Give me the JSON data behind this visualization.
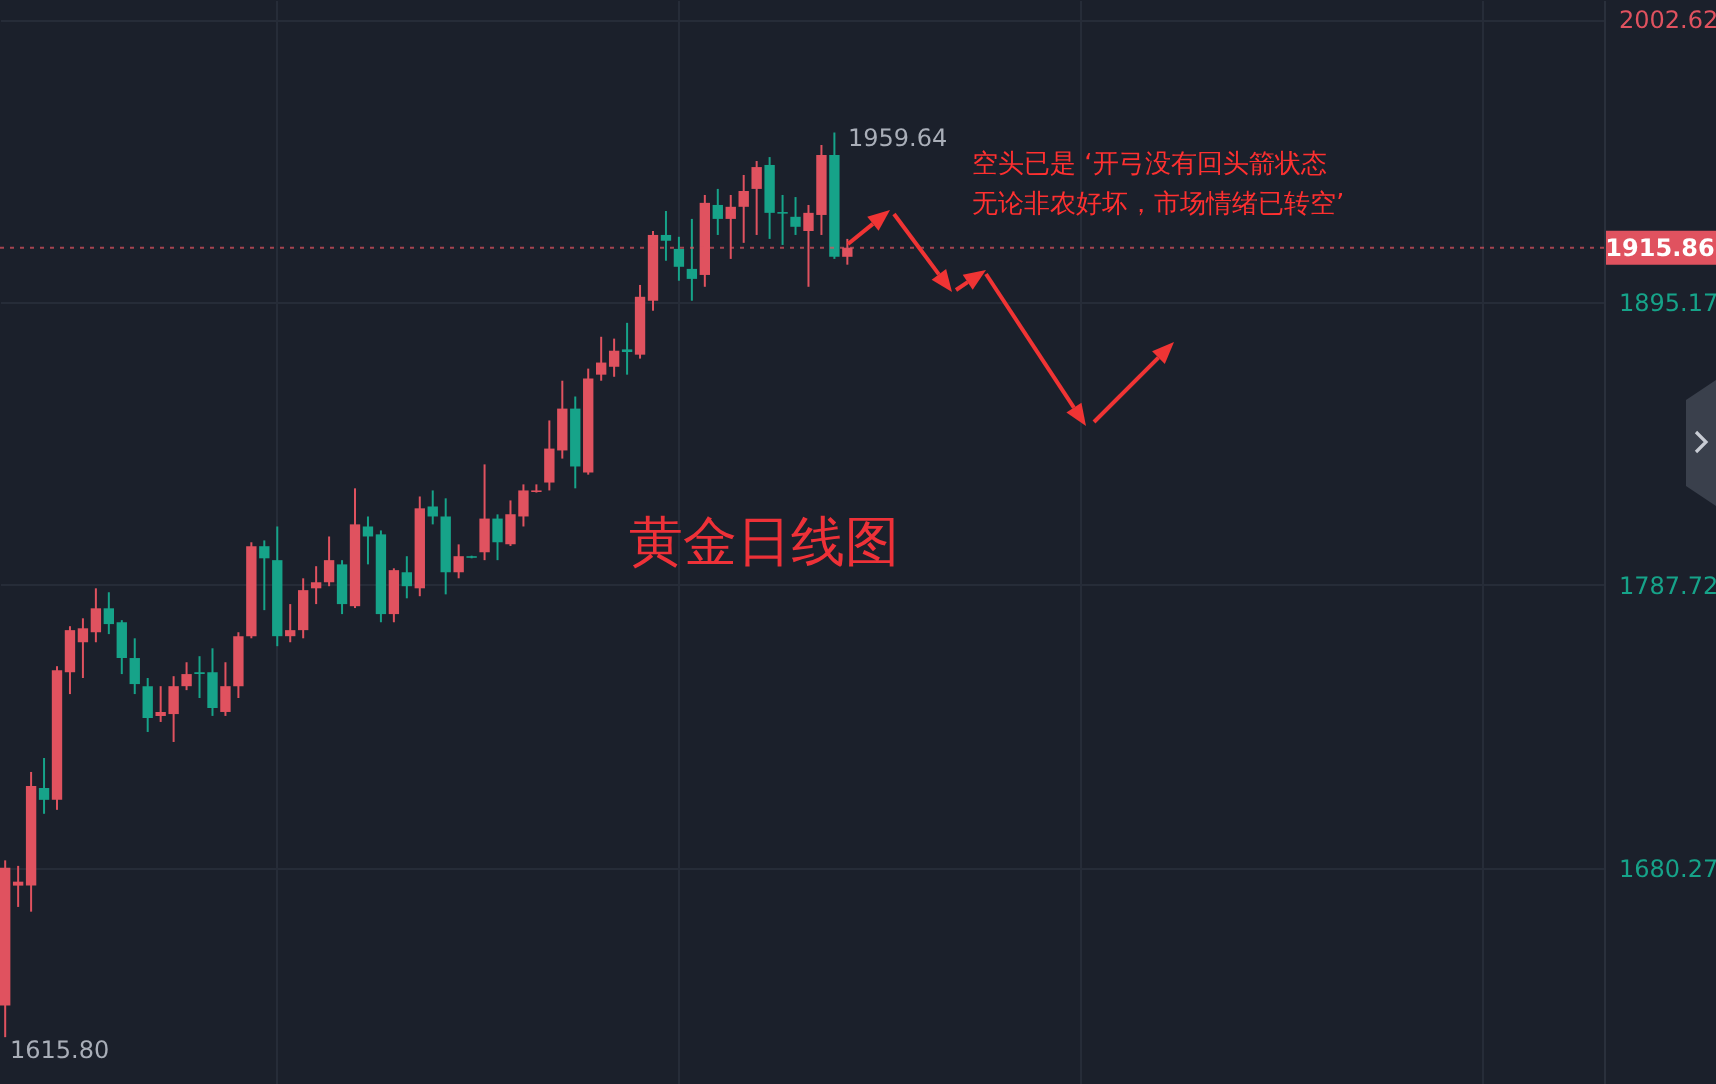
{
  "chart_data": {
    "type": "candlestick",
    "title": "黄金日线图",
    "categories": [
      null,
      null,
      null,
      null,
      null,
      null,
      null,
      null,
      null,
      null,
      null,
      null,
      null,
      null,
      null,
      null,
      null,
      null,
      null,
      null,
      null,
      null,
      null,
      null,
      null,
      null,
      null,
      null,
      null,
      null,
      null,
      null,
      null,
      null,
      null,
      null,
      null,
      null,
      null,
      null,
      null,
      null,
      null,
      null,
      null,
      null,
      null,
      null,
      null,
      null,
      null,
      null,
      null,
      null,
      null,
      null,
      null,
      null,
      null,
      null,
      null,
      null,
      null,
      null,
      null,
      null,
      null,
      null,
      null,
      null,
      null,
      null,
      null,
      null,
      null,
      null,
      null,
      null,
      null,
      null,
      null,
      null,
      null,
      null,
      null,
      null,
      null,
      null,
      null,
      null,
      null,
      null,
      null,
      null,
      null,
      null,
      null,
      null,
      null,
      null,
      null,
      null,
      null,
      null,
      null,
      null,
      null,
      null,
      null,
      null,
      null,
      null,
      null,
      null,
      null,
      null,
      null,
      null,
      null,
      null,
      null,
      null,
      null,
      null
    ],
    "ohlc": [
      [
        1627.8,
        1683.0,
        1615.8,
        1680.2
      ],
      [
        1673.4,
        1680.9,
        1665.3,
        1674.9
      ],
      [
        1673.4,
        1716.6,
        1663.5,
        1711.3
      ],
      [
        1710.5,
        1721.9,
        1700.7,
        1706.0
      ],
      [
        1706.0,
        1756.8,
        1702.2,
        1755.3
      ],
      [
        1754.5,
        1772.0,
        1746.2,
        1770.5
      ],
      [
        1765.9,
        1775.0,
        1752.3,
        1771.2
      ],
      [
        1769.7,
        1786.4,
        1765.9,
        1778.8
      ],
      [
        1778.8,
        1784.9,
        1769.0,
        1772.8
      ],
      [
        1773.5,
        1774.3,
        1753.8,
        1759.9
      ],
      [
        1759.9,
        1767.4,
        1746.2,
        1750.0
      ],
      [
        1749.2,
        1752.3,
        1731.8,
        1737.1
      ],
      [
        1737.9,
        1749.2,
        1735.6,
        1739.4
      ],
      [
        1738.6,
        1753.0,
        1728.0,
        1749.2
      ],
      [
        1749.2,
        1758.3,
        1747.7,
        1753.8
      ],
      [
        1754.5,
        1760.6,
        1744.7,
        1753.8
      ],
      [
        1754.5,
        1763.6,
        1737.9,
        1740.9
      ],
      [
        1739.4,
        1758.3,
        1737.9,
        1749.2
      ],
      [
        1749.2,
        1769.7,
        1744.7,
        1768.2
      ],
      [
        1768.2,
        1803.9,
        1767.4,
        1802.4
      ],
      [
        1802.4,
        1804.6,
        1778.1,
        1797.8
      ],
      [
        1797.1,
        1809.9,
        1764.4,
        1768.2
      ],
      [
        1768.2,
        1780.4,
        1765.9,
        1770.5
      ],
      [
        1770.5,
        1790.2,
        1767.4,
        1785.7
      ],
      [
        1786.4,
        1794.8,
        1780.4,
        1788.7
      ],
      [
        1788.7,
        1806.1,
        1787.2,
        1797.1
      ],
      [
        1795.5,
        1797.1,
        1776.6,
        1780.4
      ],
      [
        1779.6,
        1824.4,
        1778.9,
        1810.7
      ],
      [
        1809.9,
        1813.7,
        1795.5,
        1806.1
      ],
      [
        1806.9,
        1808.4,
        1773.5,
        1776.6
      ],
      [
        1776.6,
        1794.0,
        1773.5,
        1793.3
      ],
      [
        1792.5,
        1798.6,
        1782.6,
        1787.2
      ],
      [
        1786.4,
        1821.3,
        1783.4,
        1816.8
      ],
      [
        1817.5,
        1823.6,
        1810.7,
        1813.7
      ],
      [
        1813.7,
        1820.6,
        1784.1,
        1792.5
      ],
      [
        1792.5,
        1803.1,
        1790.2,
        1798.6
      ],
      [
        1798.6,
        1798.8,
        1797.8,
        1798.0
      ],
      [
        1800.1,
        1833.5,
        1797.1,
        1812.9
      ],
      [
        1812.9,
        1814.5,
        1797.1,
        1803.9
      ],
      [
        1803.1,
        1819.8,
        1802.5,
        1814.5
      ],
      [
        1813.7,
        1825.9,
        1809.9,
        1823.6
      ],
      [
        1823.0,
        1825.9,
        1822.8,
        1823.6
      ],
      [
        1826.6,
        1850.2,
        1823.6,
        1839.5
      ],
      [
        1838.8,
        1865.3,
        1835.7,
        1854.7
      ],
      [
        1854.7,
        1859.3,
        1824.4,
        1832.7
      ],
      [
        1830.4,
        1869.9,
        1829.6,
        1866.1
      ],
      [
        1867.6,
        1882.0,
        1865.3,
        1872.2
      ],
      [
        1870.6,
        1881.3,
        1866.8,
        1876.7
      ],
      [
        1877.2,
        1887.3,
        1867.6,
        1876.2
      ],
      [
        1875.2,
        1901.7,
        1873.7,
        1897.2
      ],
      [
        1895.7,
        1922.2,
        1891.9,
        1920.7
      ],
      [
        1920.7,
        1929.8,
        1910.9,
        1918.5
      ],
      [
        1915.4,
        1920.0,
        1903.3,
        1908.6
      ],
      [
        1907.8,
        1926.8,
        1895.7,
        1904.0
      ],
      [
        1905.5,
        1935.9,
        1901.0,
        1932.9
      ],
      [
        1932.1,
        1938.2,
        1920.7,
        1926.8
      ],
      [
        1926.8,
        1935.9,
        1911.6,
        1931.4
      ],
      [
        1931.4,
        1943.5,
        1917.7,
        1937.4
      ],
      [
        1938.2,
        1948.8,
        1920.7,
        1946.5
      ],
      [
        1947.3,
        1950.3,
        1919.2,
        1929.1
      ],
      [
        1929.4,
        1935.9,
        1916.9,
        1928.8
      ],
      [
        1927.6,
        1935.1,
        1920.7,
        1923.8
      ],
      [
        1922.2,
        1932.1,
        1901.0,
        1929.1
      ],
      [
        1928.3,
        1954.9,
        1920.7,
        1951.1
      ],
      [
        1951.1,
        1959.64,
        1911.6,
        1912.4
      ],
      [
        1912.4,
        1919.2,
        1909.4,
        1915.86
      ],
      null,
      null,
      null,
      null,
      null,
      null,
      null,
      null,
      null,
      null,
      null,
      null,
      null,
      null,
      null,
      null,
      null,
      null,
      null,
      null,
      null,
      null,
      null,
      null,
      null,
      null,
      null,
      null,
      null,
      null,
      null,
      null,
      null,
      null,
      null,
      null,
      null,
      null,
      null,
      null,
      null,
      null,
      null,
      null,
      null,
      null,
      null,
      null,
      null,
      null,
      null,
      null,
      null,
      null,
      null,
      null,
      null,
      null
    ],
    "colors": [
      "#e0525f",
      "#e0525f",
      "#e0525f",
      "#16a389",
      "#e0525f",
      "#e0525f",
      "#e0525f",
      "#e0525f",
      "#16a389",
      "#16a389",
      "#16a389",
      "#16a389",
      "#e0525f",
      "#e0525f",
      "#e0525f",
      "#16a389",
      "#16a389",
      "#e0525f",
      "#e0525f",
      "#e0525f",
      "#16a389",
      "#16a389",
      "#e0525f",
      "#e0525f",
      "#e0525f",
      "#e0525f",
      "#16a389",
      "#e0525f",
      "#16a389",
      "#16a389",
      "#e0525f",
      "#16a389",
      "#e0525f",
      "#16a389",
      "#16a389",
      "#e0525f",
      "#16a389",
      "#e0525f",
      "#16a389",
      "#e0525f",
      "#e0525f",
      "#e0525f",
      "#e0525f",
      "#e0525f",
      "#16a389",
      "#e0525f",
      "#e0525f",
      "#e0525f",
      "#16a389",
      "#e0525f",
      "#e0525f",
      "#16a389",
      "#16a389",
      "#16a389",
      "#e0525f",
      "#16a389",
      "#e0525f",
      "#e0525f",
      "#e0525f",
      "#16a389",
      "#16a389",
      "#16a389",
      "#e0525f",
      "#e0525f",
      "#16a389",
      "#e0525f",
      null,
      null,
      null,
      null,
      null,
      null,
      null,
      null,
      null,
      null,
      null,
      null,
      null,
      null,
      null,
      null,
      null,
      null,
      null,
      null,
      null,
      null,
      null,
      null,
      null,
      null,
      null,
      null,
      null,
      null,
      null,
      null,
      null,
      null,
      null,
      null,
      null,
      null,
      null,
      null,
      null,
      null,
      null,
      null,
      null,
      null,
      null,
      null,
      null,
      null,
      null,
      null,
      null,
      null,
      null,
      null,
      null,
      null
    ],
    "ylim": [
      1598,
      2010
    ],
    "yticks": [
      1680.27,
      1787.72,
      1895.17,
      2002.62
    ],
    "grid": true,
    "ref_lines": [
      {
        "axis": "y",
        "value": 1915.86,
        "label": "1915.86",
        "color": "#e0525f",
        "line_style": "dotted"
      }
    ],
    "annotations": [
      "1959.64",
      "1615.80",
      "空头已是 ‘开弓没有回头箭状态",
      "无论非农好坏，市场情绪已转空’"
    ]
  }
}
